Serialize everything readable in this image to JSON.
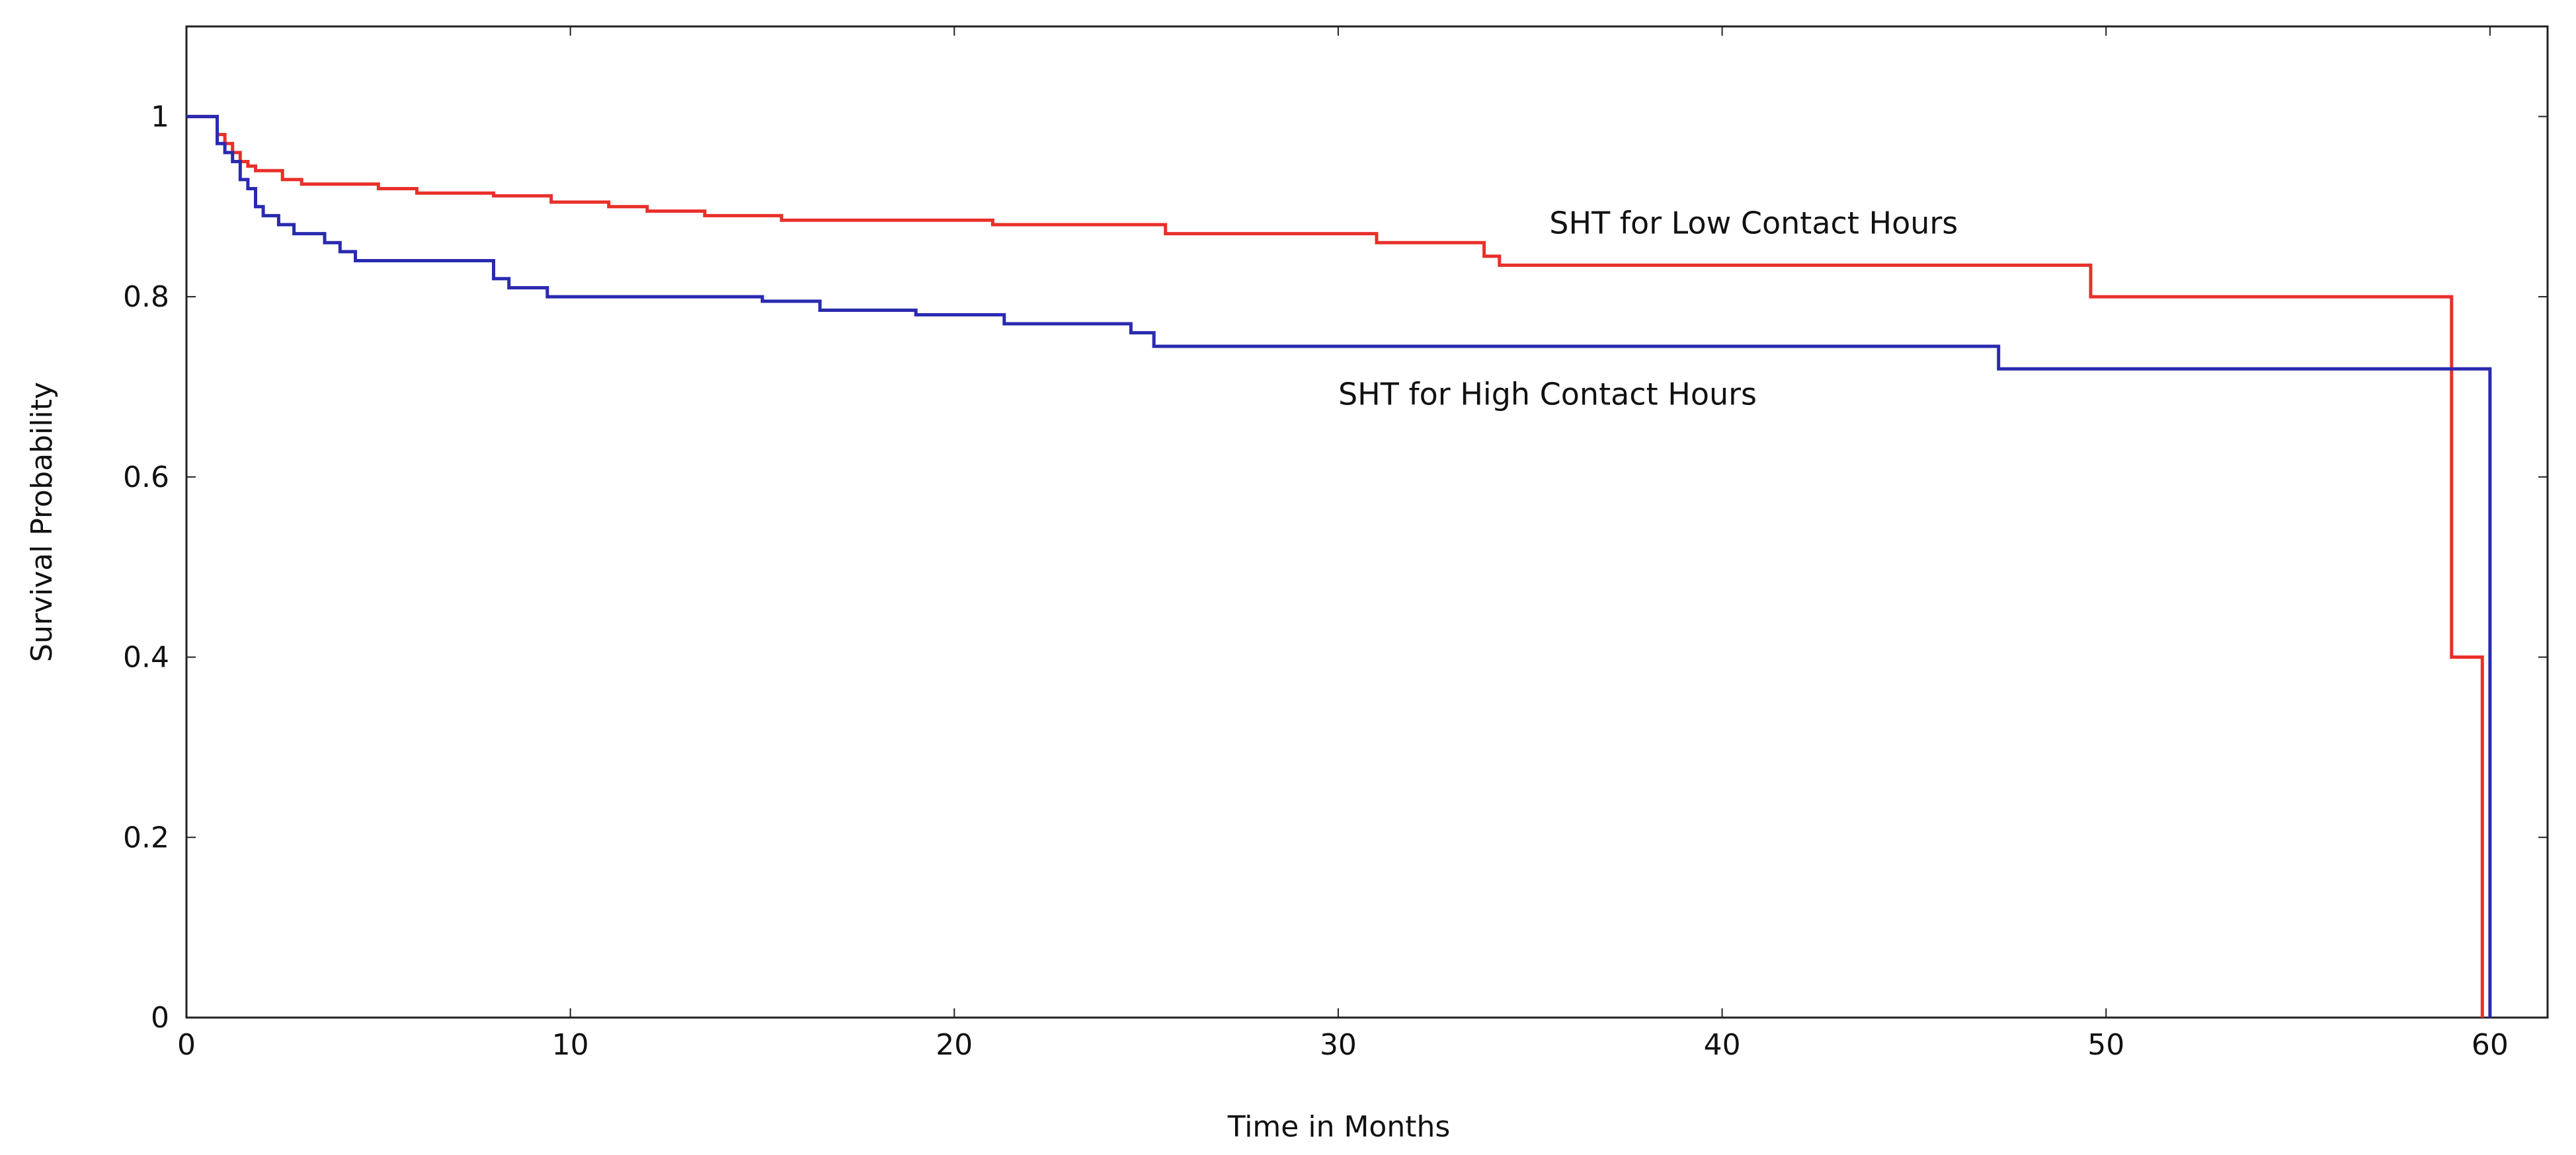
{
  "chart_data": {
    "type": "line",
    "step": true,
    "title": "",
    "xlabel": "Time in Months",
    "ylabel": "Survival Probability",
    "xlim": [
      0,
      61.5
    ],
    "ylim": [
      0,
      1.1
    ],
    "x_ticks": [
      0,
      10,
      20,
      30,
      40,
      50,
      60
    ],
    "x_tick_labels": [
      "0",
      "10",
      "20",
      "30",
      "40",
      "50",
      "60"
    ],
    "y_ticks": [
      0,
      0.2,
      0.4,
      0.6,
      0.8,
      1
    ],
    "y_tick_labels": [
      "0",
      "0.2",
      "0.4",
      "0.6",
      "0.8",
      "1"
    ],
    "grid": false,
    "series": [
      {
        "name": "SHT for Low Contact Hours",
        "color": "#e8302a",
        "x": [
          0,
          0.8,
          1.0,
          1.2,
          1.4,
          1.6,
          1.8,
          2.5,
          3.0,
          5.0,
          6.0,
          8.0,
          9.5,
          11.0,
          12.0,
          13.5,
          15.5,
          21.0,
          25.5,
          31.0,
          33.8,
          34.2,
          49.6,
          59.0,
          59.4,
          59.8
        ],
        "y": [
          1.0,
          0.98,
          0.97,
          0.96,
          0.95,
          0.945,
          0.94,
          0.93,
          0.925,
          0.92,
          0.915,
          0.912,
          0.905,
          0.9,
          0.895,
          0.89,
          0.885,
          0.88,
          0.87,
          0.86,
          0.845,
          0.835,
          0.8,
          0.4,
          0.4,
          0.0
        ]
      },
      {
        "name": "SHT for High Contact Hours",
        "color": "#2a2ab0",
        "x": [
          0,
          0.8,
          1.0,
          1.2,
          1.4,
          1.6,
          1.8,
          2.0,
          2.4,
          2.8,
          3.6,
          4.0,
          4.4,
          8.0,
          8.4,
          9.4,
          15.0,
          16.5,
          19.0,
          21.3,
          24.6,
          25.2,
          47.2,
          60.0
        ],
        "y": [
          1.0,
          0.97,
          0.96,
          0.95,
          0.93,
          0.92,
          0.9,
          0.89,
          0.88,
          0.87,
          0.86,
          0.85,
          0.84,
          0.82,
          0.81,
          0.8,
          0.795,
          0.785,
          0.78,
          0.77,
          0.76,
          0.745,
          0.72,
          0.0
        ]
      }
    ],
    "annotations": [
      {
        "text": "SHT for Low Contact Hours",
        "x": 35.5,
        "y": 0.87,
        "series": 0
      },
      {
        "text": "SHT for High Contact Hours",
        "x": 30.0,
        "y": 0.68,
        "series": 1
      }
    ]
  }
}
